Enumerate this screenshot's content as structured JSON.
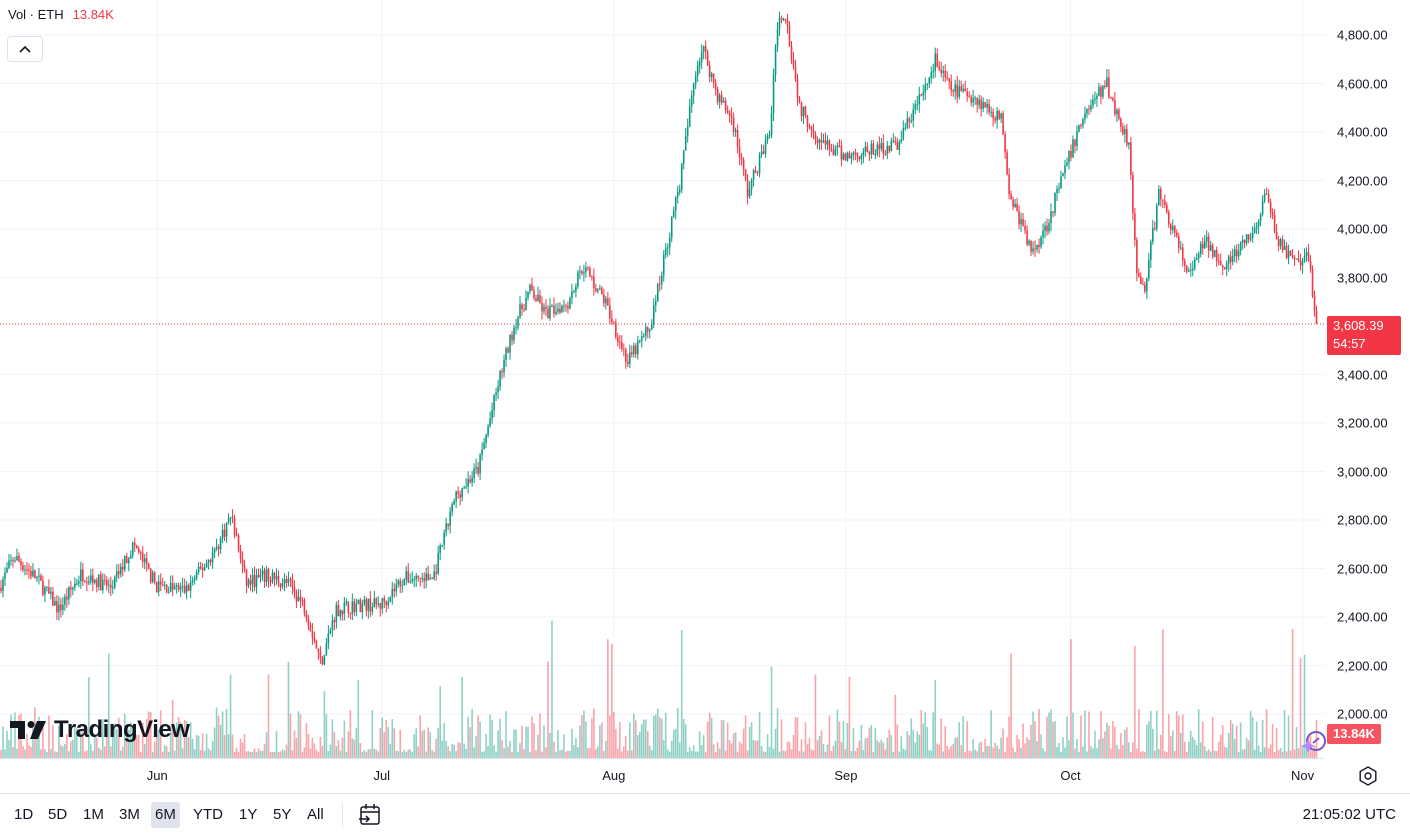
{
  "legend": {
    "vol_label": "Vol · ETH",
    "vol_value": "13.84K"
  },
  "price_axis": {
    "ticks": [
      "4,800.00",
      "4,600.00",
      "4,400.00",
      "4,200.00",
      "4,000.00",
      "3,800.00",
      "3,400.00",
      "3,200.00",
      "3,000.00",
      "2,800.00",
      "2,600.00",
      "2,400.00",
      "2,200.00",
      "2,000.00"
    ]
  },
  "price_tick_values": [
    4800,
    4600,
    4400,
    4200,
    4000,
    3800,
    3400,
    3200,
    3000,
    2800,
    2600,
    2400,
    2200,
    2000
  ],
  "time_axis": {
    "labels": [
      "Jun",
      "Jul",
      "Aug",
      "Sep",
      "Oct",
      "Nov"
    ]
  },
  "time_label_dates": [
    "2025-06-01",
    "2025-07-01",
    "2025-08-01",
    "2025-09-01",
    "2025-10-01",
    "2025-11-01"
  ],
  "last_price": {
    "price": "3,608.39",
    "countdown": "54:57",
    "value": 3608.39
  },
  "volume_badge": "13.84K",
  "branding": {
    "logo_text": "TradingView"
  },
  "ranges": [
    {
      "label": "1D",
      "active": false
    },
    {
      "label": "5D",
      "active": false
    },
    {
      "label": "1M",
      "active": false
    },
    {
      "label": "3M",
      "active": false
    },
    {
      "label": "6M",
      "active": true
    },
    {
      "label": "YTD",
      "active": false
    },
    {
      "label": "1Y",
      "active": false
    },
    {
      "label": "5Y",
      "active": false
    },
    {
      "label": "All",
      "active": false
    }
  ],
  "clock": "21:05:02 UTC",
  "colors": {
    "up": "#089981",
    "down": "#f23645",
    "grid": "#f0f3fa",
    "price_line": "#f23645"
  },
  "icons": {
    "collapse": "chevron-up-icon",
    "calendar": "calendar-goto-icon",
    "settings": "chart-settings-icon",
    "assistant": "sparkle-assistant-icon"
  },
  "chart_data": {
    "type": "candlestick",
    "symbol": "ETH",
    "ylim": [
      1900,
      4960
    ],
    "xrange": [
      "2025-05-11",
      "2025-11-04"
    ],
    "y_scale": "linear",
    "grid": true,
    "series": [
      {
        "name": "Vol · ETH",
        "type": "bar"
      }
    ],
    "close_path": [
      [
        "2025-05-11",
        2520
      ],
      [
        "2025-05-13",
        2650
      ],
      [
        "2025-05-16",
        2560
      ],
      [
        "2025-05-19",
        2430
      ],
      [
        "2025-05-22",
        2580
      ],
      [
        "2025-05-26",
        2520
      ],
      [
        "2025-05-29",
        2700
      ],
      [
        "2025-06-01",
        2530
      ],
      [
        "2025-06-05",
        2510
      ],
      [
        "2025-06-09",
        2680
      ],
      [
        "2025-06-11",
        2820
      ],
      [
        "2025-06-13",
        2540
      ],
      [
        "2025-06-16",
        2570
      ],
      [
        "2025-06-19",
        2530
      ],
      [
        "2025-06-21",
        2430
      ],
      [
        "2025-06-23",
        2210
      ],
      [
        "2025-06-25",
        2430
      ],
      [
        "2025-06-28",
        2450
      ],
      [
        "2025-07-01",
        2450
      ],
      [
        "2025-07-04",
        2560
      ],
      [
        "2025-07-08",
        2560
      ],
      [
        "2025-07-11",
        2900
      ],
      [
        "2025-07-14",
        3010
      ],
      [
        "2025-07-17",
        3400
      ],
      [
        "2025-07-19",
        3620
      ],
      [
        "2025-07-21",
        3750
      ],
      [
        "2025-07-23",
        3650
      ],
      [
        "2025-07-26",
        3700
      ],
      [
        "2025-07-28",
        3850
      ],
      [
        "2025-07-31",
        3700
      ],
      [
        "2025-08-03",
        3450
      ],
      [
        "2025-08-06",
        3600
      ],
      [
        "2025-08-08",
        3900
      ],
      [
        "2025-08-10",
        4200
      ],
      [
        "2025-08-12",
        4650
      ],
      [
        "2025-08-13",
        4750
      ],
      [
        "2025-08-15",
        4550
      ],
      [
        "2025-08-17",
        4450
      ],
      [
        "2025-08-19",
        4150
      ],
      [
        "2025-08-22",
        4400
      ],
      [
        "2025-08-23",
        4850
      ],
      [
        "2025-08-24",
        4900
      ],
      [
        "2025-08-26",
        4500
      ],
      [
        "2025-08-29",
        4350
      ],
      [
        "2025-09-01",
        4300
      ],
      [
        "2025-09-04",
        4320
      ],
      [
        "2025-09-08",
        4350
      ],
      [
        "2025-09-12",
        4600
      ],
      [
        "2025-09-13",
        4700
      ],
      [
        "2025-09-15",
        4580
      ],
      [
        "2025-09-18",
        4550
      ],
      [
        "2025-09-22",
        4450
      ],
      [
        "2025-09-23",
        4150
      ],
      [
        "2025-09-26",
        3900
      ],
      [
        "2025-09-28",
        4020
      ],
      [
        "2025-10-01",
        4300
      ],
      [
        "2025-10-03",
        4480
      ],
      [
        "2025-10-06",
        4600
      ],
      [
        "2025-10-07",
        4500
      ],
      [
        "2025-10-09",
        4350
      ],
      [
        "2025-10-10",
        3800
      ],
      [
        "2025-10-11",
        3750
      ],
      [
        "2025-10-13",
        4150
      ],
      [
        "2025-10-15",
        3980
      ],
      [
        "2025-10-17",
        3800
      ],
      [
        "2025-10-19",
        3950
      ],
      [
        "2025-10-22",
        3850
      ],
      [
        "2025-10-26",
        4000
      ],
      [
        "2025-10-27",
        4150
      ],
      [
        "2025-10-29",
        3950
      ],
      [
        "2025-10-31",
        3850
      ],
      [
        "2025-11-02",
        3880
      ],
      [
        "2025-11-03",
        3608.39
      ]
    ]
  }
}
